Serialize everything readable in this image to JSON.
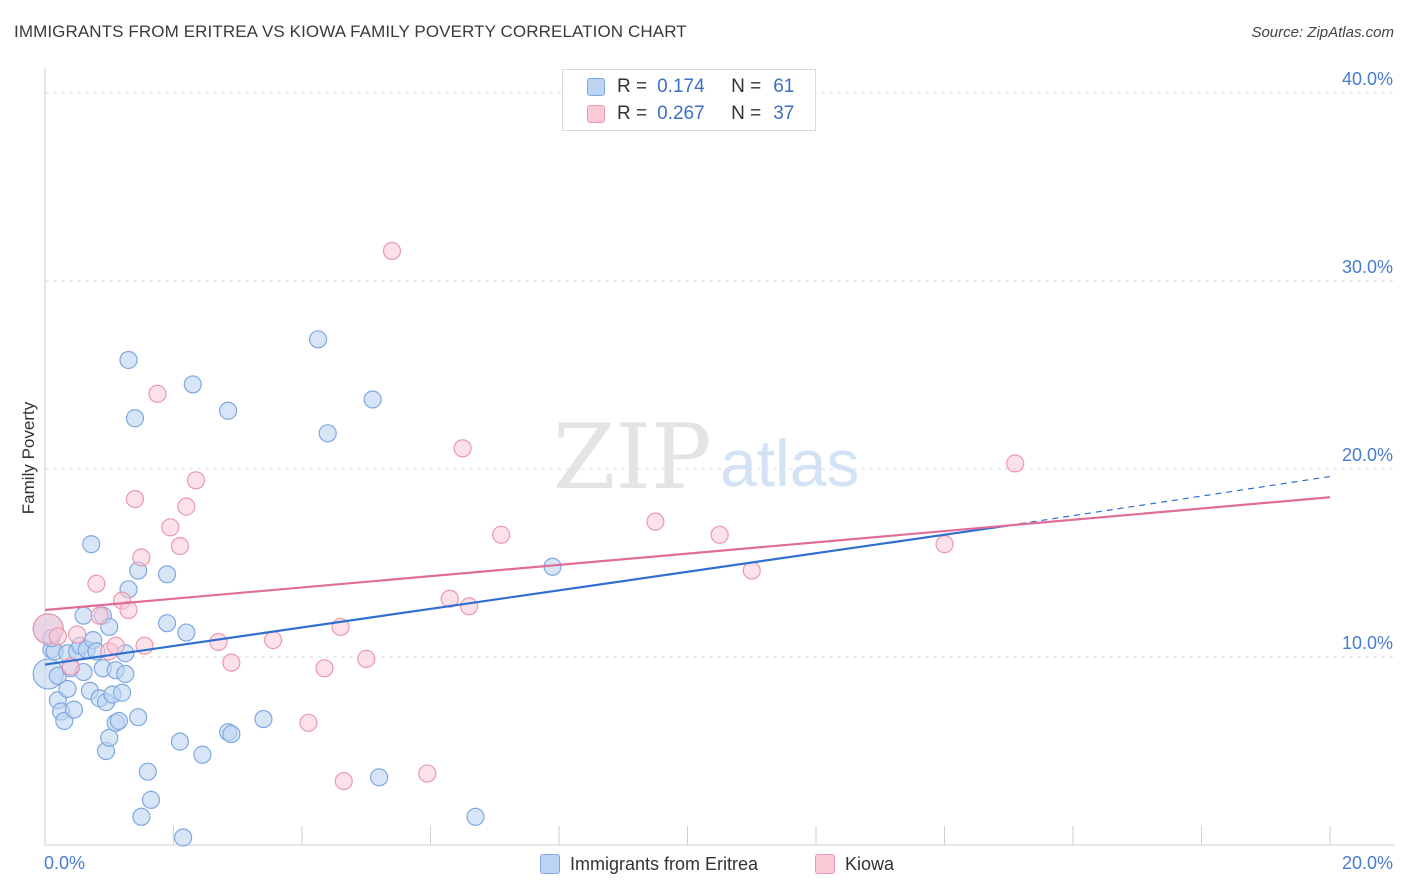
{
  "title": "IMMIGRANTS FROM ERITREA VS KIOWA FAMILY POVERTY CORRELATION CHART",
  "source": "Source: ZipAtlas.com",
  "watermark": {
    "zip": "ZIP",
    "atlas": "atlas"
  },
  "legend": {
    "r_label": "R =",
    "n_label": "N =",
    "series": [
      {
        "r": "0.174",
        "n": "61"
      },
      {
        "r": "0.267",
        "n": "37"
      }
    ]
  },
  "colors": {
    "blue_fill": "#bcd3f2",
    "blue_stroke": "#7fa8e0",
    "blue_line": "#2f6fd0",
    "pink_fill": "#f9c9d6",
    "pink_stroke": "#ec98b0",
    "pink_line": "#e06d97",
    "grid": "#dedede",
    "axis_text": "#4a7bd0"
  },
  "chart_data": {
    "type": "scatter",
    "title": "IMMIGRANTS FROM ERITREA VS KIOWA FAMILY POVERTY CORRELATION CHART",
    "xlabel": "",
    "ylabel": "Family Poverty",
    "xlim": [
      0,
      20
    ],
    "ylim": [
      0,
      40.8
    ],
    "x_tick_labels": [
      "0.0%",
      "20.0%"
    ],
    "y_ticks": [
      10,
      20,
      30,
      40
    ],
    "y_tick_labels": [
      "10.0%",
      "20.0%",
      "30.0%",
      "40.0%"
    ],
    "grid": true,
    "legend_position": "top-center",
    "series": [
      {
        "name": "Immigrants from Eritrea",
        "r": 0.174,
        "n": 61,
        "points": [
          [
            0.05,
            9.1
          ],
          [
            0.05,
            11.5
          ],
          [
            0.1,
            10.4
          ],
          [
            0.15,
            10.3
          ],
          [
            0.2,
            7.7
          ],
          [
            0.2,
            9.0
          ],
          [
            0.25,
            7.1
          ],
          [
            0.3,
            6.6
          ],
          [
            0.35,
            8.3
          ],
          [
            0.35,
            10.2
          ],
          [
            0.4,
            9.4
          ],
          [
            0.45,
            7.2
          ],
          [
            0.5,
            10.3
          ],
          [
            0.55,
            10.6
          ],
          [
            0.6,
            12.2
          ],
          [
            0.6,
            9.2
          ],
          [
            0.65,
            10.4
          ],
          [
            0.7,
            8.2
          ],
          [
            0.72,
            16.0
          ],
          [
            0.75,
            10.9
          ],
          [
            0.8,
            10.3
          ],
          [
            0.85,
            7.8
          ],
          [
            0.9,
            12.2
          ],
          [
            0.95,
            7.6
          ],
          [
            0.9,
            9.4
          ],
          [
            0.95,
            5.0
          ],
          [
            1.0,
            11.6
          ],
          [
            1.0,
            5.7
          ],
          [
            1.05,
            8.0
          ],
          [
            1.1,
            9.3
          ],
          [
            1.1,
            6.5
          ],
          [
            1.15,
            6.6
          ],
          [
            1.2,
            8.1
          ],
          [
            1.25,
            10.2
          ],
          [
            1.25,
            9.1
          ],
          [
            1.3,
            13.6
          ],
          [
            1.3,
            25.8
          ],
          [
            1.4,
            22.7
          ],
          [
            1.45,
            6.8
          ],
          [
            1.45,
            14.6
          ],
          [
            1.5,
            1.5
          ],
          [
            1.6,
            3.9
          ],
          [
            1.65,
            2.4
          ],
          [
            1.9,
            14.4
          ],
          [
            1.9,
            11.8
          ],
          [
            2.1,
            5.5
          ],
          [
            2.15,
            0.4
          ],
          [
            2.2,
            11.3
          ],
          [
            2.3,
            24.5
          ],
          [
            2.45,
            4.8
          ],
          [
            2.85,
            23.1
          ],
          [
            2.85,
            6.0
          ],
          [
            2.9,
            5.9
          ],
          [
            3.4,
            6.7
          ],
          [
            4.25,
            26.9
          ],
          [
            4.4,
            21.9
          ],
          [
            5.1,
            23.7
          ],
          [
            5.2,
            3.6
          ],
          [
            6.7,
            1.5
          ],
          [
            7.9,
            14.8
          ],
          [
            0.1,
            11.0
          ]
        ],
        "trend": {
          "x": [
            0,
            15
          ],
          "y": [
            9.6,
            17.0
          ],
          "dashed_to": [
            20,
            19.6
          ]
        }
      },
      {
        "name": "Kiowa",
        "r": 0.267,
        "n": 37,
        "points": [
          [
            0.05,
            11.5
          ],
          [
            0.2,
            11.1
          ],
          [
            0.4,
            9.5
          ],
          [
            0.5,
            11.2
          ],
          [
            0.8,
            13.9
          ],
          [
            0.85,
            12.2
          ],
          [
            1.0,
            10.3
          ],
          [
            1.1,
            10.6
          ],
          [
            1.2,
            13.0
          ],
          [
            1.3,
            12.5
          ],
          [
            1.4,
            18.4
          ],
          [
            1.5,
            15.3
          ],
          [
            1.55,
            10.6
          ],
          [
            1.75,
            24.0
          ],
          [
            1.95,
            16.9
          ],
          [
            2.1,
            15.9
          ],
          [
            2.2,
            18.0
          ],
          [
            2.35,
            19.4
          ],
          [
            2.7,
            10.8
          ],
          [
            2.9,
            9.7
          ],
          [
            3.55,
            10.9
          ],
          [
            4.1,
            6.5
          ],
          [
            4.35,
            9.4
          ],
          [
            4.6,
            11.6
          ],
          [
            4.65,
            3.4
          ],
          [
            5.0,
            9.9
          ],
          [
            5.4,
            31.6
          ],
          [
            5.95,
            3.8
          ],
          [
            6.3,
            13.1
          ],
          [
            6.5,
            21.1
          ],
          [
            6.6,
            12.7
          ],
          [
            7.1,
            16.5
          ],
          [
            9.5,
            17.2
          ],
          [
            10.5,
            16.5
          ],
          [
            11.0,
            14.6
          ],
          [
            14.0,
            16.0
          ],
          [
            15.1,
            20.3
          ]
        ],
        "trend": {
          "x": [
            0,
            20
          ],
          "y": [
            12.5,
            18.5
          ]
        }
      }
    ]
  }
}
